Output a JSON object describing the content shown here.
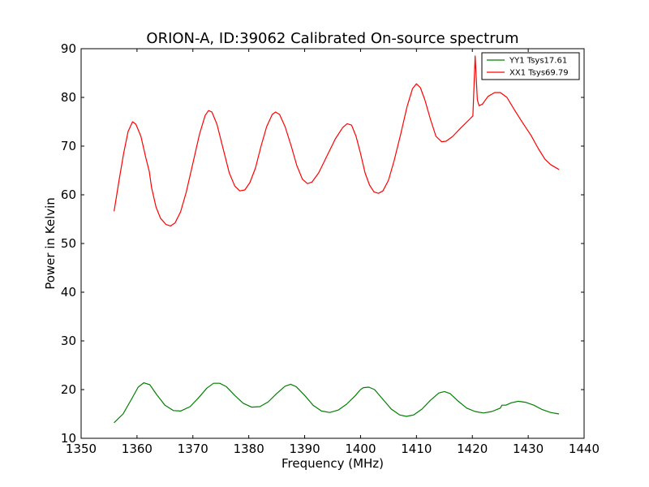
{
  "chart_data": {
    "type": "line",
    "title": "ORION-A, ID:39062 Calibrated On-source spectrum",
    "xlabel": "Frequency (MHz)",
    "ylabel": "Power in Kelvin",
    "xlim": [
      1350,
      1440
    ],
    "ylim": [
      10,
      90
    ],
    "xticks": [
      "1350",
      "1360",
      "1370",
      "1380",
      "1390",
      "1400",
      "1410",
      "1420",
      "1430",
      "1440"
    ],
    "yticks": [
      "10",
      "20",
      "30",
      "40",
      "50",
      "60",
      "70",
      "80",
      "90"
    ],
    "grid": false,
    "legend_position": "top-right",
    "series": [
      {
        "name": "YY1 Tsys17.61",
        "color": "#008000",
        "points": [
          [
            1355.9,
            13.2
          ],
          [
            1357.5,
            15.0
          ],
          [
            1359.0,
            18.0
          ],
          [
            1360.2,
            20.5
          ],
          [
            1361.2,
            21.4
          ],
          [
            1362.3,
            21.0
          ],
          [
            1363.5,
            19.0
          ],
          [
            1365.0,
            16.8
          ],
          [
            1366.5,
            15.7
          ],
          [
            1367.8,
            15.6
          ],
          [
            1369.5,
            16.5
          ],
          [
            1371.0,
            18.3
          ],
          [
            1372.5,
            20.3
          ],
          [
            1373.7,
            21.3
          ],
          [
            1374.8,
            21.3
          ],
          [
            1376.0,
            20.6
          ],
          [
            1377.5,
            18.8
          ],
          [
            1379.0,
            17.2
          ],
          [
            1380.5,
            16.4
          ],
          [
            1382.0,
            16.5
          ],
          [
            1383.5,
            17.5
          ],
          [
            1385.0,
            19.2
          ],
          [
            1386.5,
            20.7
          ],
          [
            1387.5,
            21.1
          ],
          [
            1388.5,
            20.6
          ],
          [
            1390.0,
            18.8
          ],
          [
            1391.5,
            16.8
          ],
          [
            1393.0,
            15.6
          ],
          [
            1394.5,
            15.3
          ],
          [
            1396.0,
            15.8
          ],
          [
            1397.5,
            17.0
          ],
          [
            1399.0,
            18.7
          ],
          [
            1400.0,
            20.0
          ],
          [
            1400.5,
            20.4
          ],
          [
            1401.5,
            20.5
          ],
          [
            1402.5,
            20.0
          ],
          [
            1404.0,
            18.0
          ],
          [
            1405.5,
            16.0
          ],
          [
            1407.0,
            14.8
          ],
          [
            1408.2,
            14.5
          ],
          [
            1409.5,
            14.8
          ],
          [
            1411.0,
            16.0
          ],
          [
            1412.5,
            17.8
          ],
          [
            1414.0,
            19.3
          ],
          [
            1415.0,
            19.6
          ],
          [
            1416.0,
            19.2
          ],
          [
            1417.5,
            17.6
          ],
          [
            1419.0,
            16.2
          ],
          [
            1420.5,
            15.5
          ],
          [
            1422.0,
            15.2
          ],
          [
            1423.5,
            15.5
          ],
          [
            1425.0,
            16.2
          ],
          [
            1425.3,
            16.8
          ],
          [
            1426.0,
            16.8
          ],
          [
            1427.0,
            17.3
          ],
          [
            1428.2,
            17.6
          ],
          [
            1429.5,
            17.4
          ],
          [
            1431.0,
            16.8
          ],
          [
            1432.5,
            15.9
          ],
          [
            1434.0,
            15.3
          ],
          [
            1435.5,
            15.0
          ]
        ]
      },
      {
        "name": "XX1 Tsys69.79",
        "color": "#ff0000",
        "points": [
          [
            1355.9,
            56.6
          ],
          [
            1356.8,
            63.0
          ],
          [
            1357.6,
            68.5
          ],
          [
            1358.4,
            73.0
          ],
          [
            1359.2,
            75.0
          ],
          [
            1359.8,
            74.5
          ],
          [
            1360.7,
            72.0
          ],
          [
            1361.6,
            67.5
          ],
          [
            1362.2,
            64.8
          ],
          [
            1362.6,
            61.5
          ],
          [
            1363.4,
            57.5
          ],
          [
            1364.2,
            55.2
          ],
          [
            1365.2,
            53.9
          ],
          [
            1366.0,
            53.6
          ],
          [
            1366.8,
            54.2
          ],
          [
            1367.8,
            56.5
          ],
          [
            1368.8,
            60.5
          ],
          [
            1370.0,
            66.5
          ],
          [
            1371.2,
            72.5
          ],
          [
            1372.2,
            76.3
          ],
          [
            1372.8,
            77.3
          ],
          [
            1373.4,
            77.0
          ],
          [
            1374.3,
            74.5
          ],
          [
            1375.4,
            69.5
          ],
          [
            1376.5,
            64.5
          ],
          [
            1377.5,
            61.8
          ],
          [
            1378.4,
            60.8
          ],
          [
            1379.3,
            61.0
          ],
          [
            1380.2,
            62.5
          ],
          [
            1381.2,
            65.5
          ],
          [
            1382.2,
            70.0
          ],
          [
            1383.2,
            74.0
          ],
          [
            1384.2,
            76.5
          ],
          [
            1384.8,
            77.0
          ],
          [
            1385.5,
            76.5
          ],
          [
            1386.5,
            74.0
          ],
          [
            1387.6,
            70.0
          ],
          [
            1388.6,
            66.0
          ],
          [
            1389.6,
            63.2
          ],
          [
            1390.5,
            62.3
          ],
          [
            1391.3,
            62.6
          ],
          [
            1392.5,
            64.5
          ],
          [
            1394.0,
            68.0
          ],
          [
            1395.5,
            71.5
          ],
          [
            1396.8,
            73.8
          ],
          [
            1397.6,
            74.6
          ],
          [
            1398.4,
            74.3
          ],
          [
            1399.2,
            72.0
          ],
          [
            1400.0,
            68.5
          ],
          [
            1400.8,
            64.5
          ],
          [
            1401.6,
            62.0
          ],
          [
            1402.4,
            60.6
          ],
          [
            1403.2,
            60.3
          ],
          [
            1404.0,
            60.8
          ],
          [
            1405.0,
            63.0
          ],
          [
            1406.0,
            67.0
          ],
          [
            1407.2,
            72.5
          ],
          [
            1408.3,
            78.0
          ],
          [
            1409.3,
            81.8
          ],
          [
            1410.0,
            82.8
          ],
          [
            1410.7,
            82.0
          ],
          [
            1411.5,
            79.5
          ],
          [
            1412.5,
            75.5
          ],
          [
            1413.5,
            72.0
          ],
          [
            1414.5,
            70.9
          ],
          [
            1415.3,
            71.0
          ],
          [
            1416.5,
            72.0
          ],
          [
            1418.0,
            73.8
          ],
          [
            1419.5,
            75.5
          ],
          [
            1420.1,
            76.2
          ],
          [
            1420.5,
            88.5
          ],
          [
            1420.9,
            79.5
          ],
          [
            1421.2,
            78.3
          ],
          [
            1421.8,
            78.6
          ],
          [
            1422.8,
            80.2
          ],
          [
            1424.0,
            81.0
          ],
          [
            1425.0,
            81.0
          ],
          [
            1426.2,
            80.0
          ],
          [
            1427.5,
            77.5
          ],
          [
            1429.0,
            74.8
          ],
          [
            1430.5,
            72.2
          ],
          [
            1431.8,
            69.5
          ],
          [
            1433.0,
            67.3
          ],
          [
            1434.0,
            66.2
          ],
          [
            1435.5,
            65.2
          ]
        ]
      }
    ]
  }
}
